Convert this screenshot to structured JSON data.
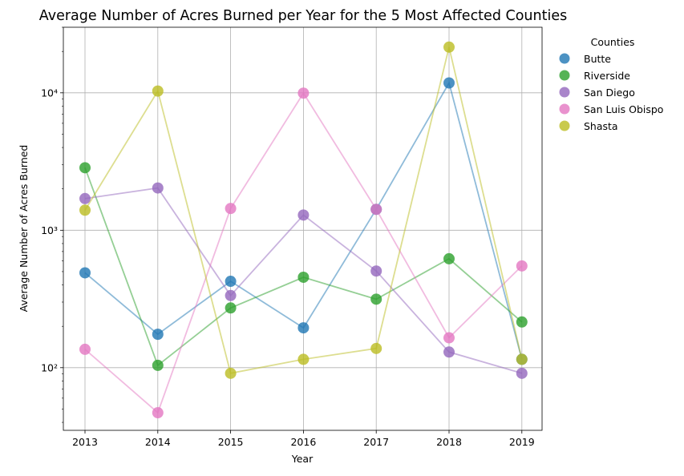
{
  "chart_data": {
    "type": "line",
    "title": "Average Number of Acres Burned per Year for the 5 Most Affected Counties",
    "xlabel": "Year",
    "ylabel": "Average Number of Acres Burned",
    "yscale": "log",
    "ylim": [
      35,
      30000
    ],
    "grid": true,
    "legend_title": "Counties",
    "legend_position": "outside-right",
    "x": [
      "2013",
      "2014",
      "2015",
      "2016",
      "2017",
      "2018",
      "2019"
    ],
    "y_tick_labels": [
      "10²",
      "10³",
      "10⁴"
    ],
    "y_tick_values": [
      100,
      1000,
      10000
    ],
    "series": [
      {
        "name": "Butte",
        "color": "#1f77b4",
        "values": [
          490,
          175,
          425,
          195,
          1420,
          11800,
          115
        ]
      },
      {
        "name": "Riverside",
        "color": "#2ca02c",
        "values": [
          2850,
          104,
          272,
          455,
          315,
          620,
          215
        ]
      },
      {
        "name": "San Diego",
        "color": "#9467bd",
        "values": [
          1700,
          2030,
          335,
          1290,
          505,
          130,
          91
        ]
      },
      {
        "name": "San Luis Obispo",
        "color": "#e377c2",
        "values": [
          136,
          47,
          1440,
          9950,
          1420,
          165,
          550
        ]
      },
      {
        "name": "Shasta",
        "color": "#bcbd22",
        "values": [
          1400,
          10300,
          91,
          115,
          138,
          21500,
          115
        ]
      }
    ]
  }
}
